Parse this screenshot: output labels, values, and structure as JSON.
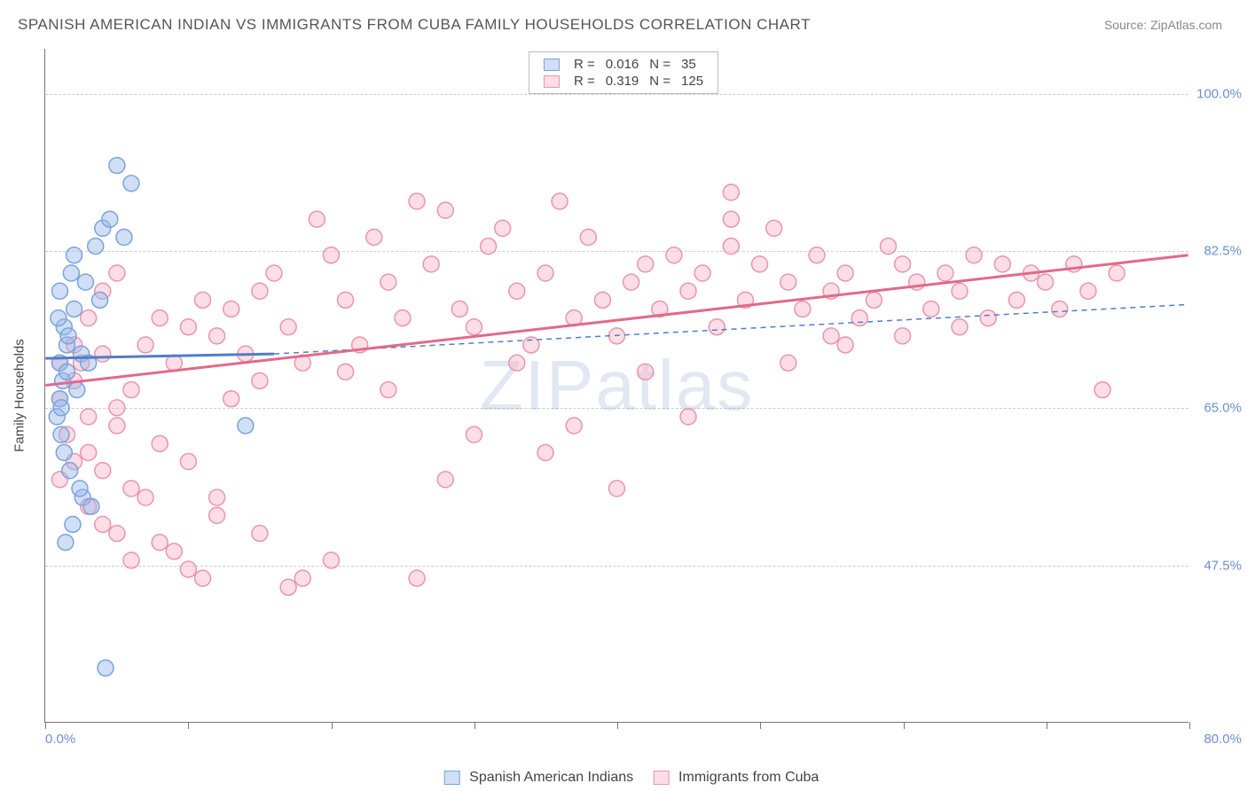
{
  "title": "SPANISH AMERICAN INDIAN VS IMMIGRANTS FROM CUBA FAMILY HOUSEHOLDS CORRELATION CHART",
  "source": "Source: ZipAtlas.com",
  "watermark": "ZIPatlas",
  "y_axis_title": "Family Households",
  "chart": {
    "type": "scatter",
    "xlim": [
      0,
      80
    ],
    "ylim": [
      30,
      105
    ],
    "y_ticks": [
      47.5,
      65.0,
      82.5,
      100.0
    ],
    "y_tick_labels": [
      "47.5%",
      "65.0%",
      "82.5%",
      "100.0%"
    ],
    "x_tick_positions": [
      0,
      10,
      20,
      30,
      40,
      50,
      60,
      70,
      80
    ],
    "x_label_min": "0.0%",
    "x_label_max": "80.0%",
    "background_color": "#ffffff",
    "grid_color": "#cccccc",
    "marker_radius": 9,
    "marker_stroke_width": 1.5,
    "trend_line_width": 3,
    "trend_dash_width": 1.5
  },
  "series": [
    {
      "key": "spanish_american_indians",
      "label": "Spanish American Indians",
      "color_fill": "rgba(150,185,235,0.45)",
      "color_stroke": "#7aa3dd",
      "color_line": "#4f7ec9",
      "R": "0.016",
      "N": "35",
      "trend": {
        "x1": 0,
        "y1": 70.5,
        "x2": 16,
        "y2": 71.0,
        "dash_x2": 80,
        "dash_y2": 76.5
      },
      "points": [
        [
          1.0,
          70
        ],
        [
          1.2,
          68
        ],
        [
          1.0,
          66
        ],
        [
          1.5,
          72
        ],
        [
          1.3,
          74
        ],
        [
          1.0,
          78
        ],
        [
          1.8,
          80
        ],
        [
          2.0,
          76
        ],
        [
          1.5,
          69
        ],
        [
          2.2,
          67
        ],
        [
          0.8,
          64
        ],
        [
          1.6,
          73
        ],
        [
          2.5,
          71
        ],
        [
          3.0,
          70
        ],
        [
          1.1,
          62
        ],
        [
          1.3,
          60
        ],
        [
          0.9,
          75
        ],
        [
          2.0,
          82
        ],
        [
          2.8,
          79
        ],
        [
          3.5,
          83
        ],
        [
          4.0,
          85
        ],
        [
          5.0,
          92
        ],
        [
          4.5,
          86
        ],
        [
          6.0,
          90
        ],
        [
          2.6,
          55
        ],
        [
          3.2,
          54
        ],
        [
          1.9,
          52
        ],
        [
          1.4,
          50
        ],
        [
          4.2,
          36
        ],
        [
          14.0,
          63
        ],
        [
          5.5,
          84
        ],
        [
          3.8,
          77
        ],
        [
          1.7,
          58
        ],
        [
          2.4,
          56
        ],
        [
          1.1,
          65
        ]
      ]
    },
    {
      "key": "immigrants_from_cuba",
      "label": "Immigrants from Cuba",
      "color_fill": "rgba(250,180,200,0.45)",
      "color_stroke": "#e995ac",
      "color_line": "#e26a88",
      "R": "0.319",
      "N": "125",
      "trend": {
        "x1": 0,
        "y1": 67.5,
        "x2": 80,
        "y2": 82.0
      },
      "points": [
        [
          1,
          66
        ],
        [
          2,
          68
        ],
        [
          3,
          64
        ],
        [
          1.5,
          62
        ],
        [
          2.5,
          70
        ],
        [
          4,
          71
        ],
        [
          3,
          60
        ],
        [
          5,
          65
        ],
        [
          6,
          67
        ],
        [
          4,
          58
        ],
        [
          7,
          72
        ],
        [
          8,
          75
        ],
        [
          5,
          63
        ],
        [
          9,
          70
        ],
        [
          10,
          74
        ],
        [
          6,
          56
        ],
        [
          11,
          77
        ],
        [
          12,
          73
        ],
        [
          8,
          61
        ],
        [
          13,
          76
        ],
        [
          14,
          71
        ],
        [
          15,
          78
        ],
        [
          10,
          59
        ],
        [
          16,
          80
        ],
        [
          17,
          74
        ],
        [
          18,
          46
        ],
        [
          12,
          55
        ],
        [
          19,
          86
        ],
        [
          20,
          82
        ],
        [
          21,
          77
        ],
        [
          15,
          51
        ],
        [
          22,
          72
        ],
        [
          23,
          84
        ],
        [
          24,
          79
        ],
        [
          17,
          45
        ],
        [
          25,
          75
        ],
        [
          26,
          88
        ],
        [
          27,
          81
        ],
        [
          28,
          87
        ],
        [
          20,
          48
        ],
        [
          29,
          76
        ],
        [
          30,
          74
        ],
        [
          31,
          83
        ],
        [
          32,
          85
        ],
        [
          26,
          46
        ],
        [
          33,
          78
        ],
        [
          34,
          72
        ],
        [
          35,
          80
        ],
        [
          28,
          57
        ],
        [
          36,
          88
        ],
        [
          37,
          75
        ],
        [
          38,
          84
        ],
        [
          39,
          77
        ],
        [
          30,
          62
        ],
        [
          40,
          73
        ],
        [
          41,
          79
        ],
        [
          42,
          81
        ],
        [
          43,
          76
        ],
        [
          35,
          60
        ],
        [
          44,
          82
        ],
        [
          45,
          78
        ],
        [
          46,
          80
        ],
        [
          47,
          74
        ],
        [
          40,
          56
        ],
        [
          48,
          83
        ],
        [
          49,
          77
        ],
        [
          50,
          81
        ],
        [
          51,
          85
        ],
        [
          45,
          64
        ],
        [
          52,
          79
        ],
        [
          53,
          76
        ],
        [
          54,
          82
        ],
        [
          55,
          78
        ],
        [
          48,
          89
        ],
        [
          56,
          80
        ],
        [
          57,
          75
        ],
        [
          58,
          77
        ],
        [
          59,
          83
        ],
        [
          52,
          70
        ],
        [
          60,
          81
        ],
        [
          61,
          79
        ],
        [
          62,
          76
        ],
        [
          63,
          80
        ],
        [
          56,
          72
        ],
        [
          64,
          78
        ],
        [
          65,
          82
        ],
        [
          66,
          75
        ],
        [
          67,
          81
        ],
        [
          60,
          73
        ],
        [
          68,
          77
        ],
        [
          69,
          80
        ],
        [
          70,
          79
        ],
        [
          71,
          76
        ],
        [
          64,
          74
        ],
        [
          72,
          81
        ],
        [
          73,
          78
        ],
        [
          74,
          67
        ],
        [
          75,
          80
        ],
        [
          3,
          54
        ],
        [
          4,
          52
        ],
        [
          5,
          51
        ],
        [
          6,
          48
        ],
        [
          8,
          50
        ],
        [
          10,
          47
        ],
        [
          12,
          53
        ],
        [
          2,
          59
        ],
        [
          1,
          57
        ],
        [
          7,
          55
        ],
        [
          9,
          49
        ],
        [
          11,
          46
        ],
        [
          2,
          72
        ],
        [
          3,
          75
        ],
        [
          1,
          70
        ],
        [
          4,
          78
        ],
        [
          5,
          80
        ],
        [
          13,
          66
        ],
        [
          15,
          68
        ],
        [
          18,
          70
        ],
        [
          21,
          69
        ],
        [
          24,
          67
        ],
        [
          48,
          86
        ],
        [
          33,
          70
        ],
        [
          37,
          63
        ],
        [
          42,
          69
        ],
        [
          55,
          73
        ]
      ]
    }
  ],
  "legend_top_labels": {
    "R": "R =",
    "N": "N ="
  }
}
